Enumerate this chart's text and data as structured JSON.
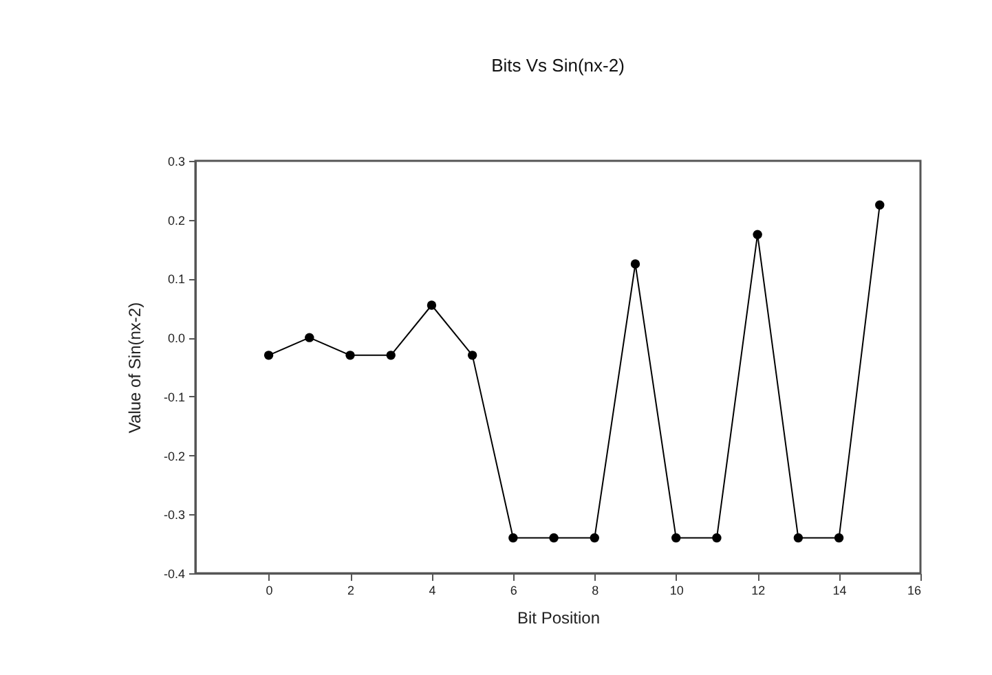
{
  "chart_data": {
    "type": "line",
    "title": "Bits Vs Sin(nx-2)",
    "xlabel": "Bit Position",
    "ylabel": "Value of Sin(nx-2)",
    "x": [
      0,
      1,
      2,
      3,
      4,
      5,
      6,
      7,
      8,
      9,
      10,
      11,
      12,
      13,
      14,
      15
    ],
    "series": [
      {
        "color": "#000000",
        "values": [
          -0.03,
          0,
          -0.03,
          -0.03,
          0.055,
          -0.03,
          -0.34,
          -0.34,
          -0.34,
          0.125,
          -0.34,
          -0.34,
          0.175,
          -0.34,
          -0.34,
          0.225
        ]
      }
    ],
    "xlim": [
      -1.8,
      16
    ],
    "xticks": [
      0,
      2,
      4,
      6,
      8,
      10,
      12,
      14,
      16
    ],
    "ylim": [
      -0.4,
      0.3
    ],
    "yticks": [
      {
        "value": -0.4,
        "label": "-0.4"
      },
      {
        "value": -0.3,
        "label": "-0.3"
      },
      {
        "value": -0.2,
        "label": "-0.2"
      },
      {
        "value": -0.1,
        "label": "-0.1"
      },
      {
        "value": 0,
        "label": "0.0"
      },
      {
        "value": 0.1,
        "label": "0.1"
      },
      {
        "value": 0.2,
        "label": "0.2"
      },
      {
        "value": 0.3,
        "label": "0.3"
      }
    ],
    "grid": false,
    "marker": "circle",
    "line_style": "solid"
  }
}
